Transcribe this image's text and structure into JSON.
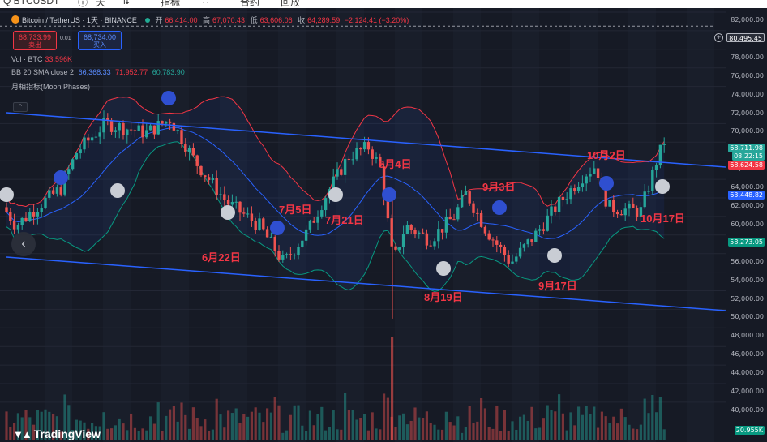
{
  "toolbar": {
    "items": [
      "Q BTCUSDT",
      "ⓘ",
      "天",
      "⇅",
      "指标",
      "∷",
      "合约",
      "回放"
    ]
  },
  "header": {
    "title": "Bitcoin / TetherUS · 1天 · BINANCE",
    "open_label": "开",
    "open": "66,414.00",
    "high_label": "高",
    "high": "67,070.43",
    "low_label": "低",
    "low": "63,606.06",
    "close_label": "收",
    "close": "64,289.59",
    "change": "−2,124.41 (−3.20%)"
  },
  "trade": {
    "sell_price": "68,733.99",
    "sell_label": "卖出",
    "spread": "0.01",
    "buy_price": "68,734.00",
    "buy_label": "买入"
  },
  "legends": {
    "vol_label": "Vol · BTC",
    "vol_value": "33.596K",
    "bb_label": "BB 20 SMA close 2",
    "bb_basis": "66,368.33",
    "bb_upper": "71,952.77",
    "bb_lower": "60,783.90",
    "moon_label": "月相指标(Moon Phases)"
  },
  "price_axis": {
    "ticks": [
      "82,000.00",
      "80,000.00",
      "78,000.00",
      "76,000.00",
      "74,000.00",
      "72,000.00",
      "70,000.00",
      "68,000.00",
      "66,000.00",
      "64,000.00",
      "62,000.00",
      "60,000.00",
      "58,000.00",
      "56,000.00",
      "54,000.00",
      "52,000.00",
      "50,000.00",
      "48,000.00",
      "46,000.00",
      "44,000.00",
      "42,000.00",
      "40,000.00"
    ],
    "crosshair_price": "80,495.45",
    "last_price": "68,711.98",
    "countdown": "08:22:15",
    "bb_upper_badge": "68,624.58",
    "bb_basis_badge": "63,448.82",
    "bb_lower_badge": "58,273.05",
    "volume_badge": "20.955K"
  },
  "annotations": [
    "6月22日",
    "7月5日",
    "7月21日",
    "8月4日",
    "8月19日",
    "9月3日",
    "9月17日",
    "10月2日",
    "10月17日"
  ],
  "logo_text": "TradingView",
  "colors": {
    "up": "#26a69a",
    "down": "#ef5350",
    "bb_upper": "#f23645",
    "bb_basis": "#2962ff",
    "bb_lower": "#089981",
    "channel": "#2962ff",
    "annotation": "#f23645",
    "new_moon": "#2f4fd0",
    "full_moon": "#c9cdd4"
  }
}
